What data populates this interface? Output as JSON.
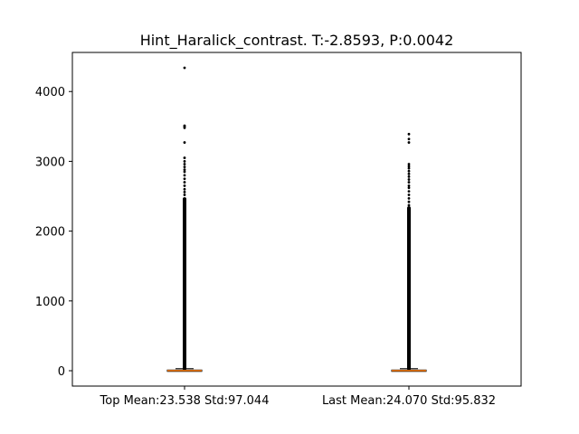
{
  "chart_data": {
    "type": "box",
    "title": "Hint_Haralick_contrast. T:-2.8593, P:0.0042",
    "categories": [
      "Top Mean:23.538 Std:97.044",
      "Last Mean:24.070 Std:95.832"
    ],
    "xlabel": "",
    "ylabel": "",
    "ylim": [
      -220,
      4560
    ],
    "yticks": [
      0,
      1000,
      2000,
      3000,
      4000
    ],
    "grid": false,
    "series": [
      {
        "box": {
          "q1": 0,
          "median": 2,
          "q3": 10,
          "whisker_low": 0,
          "whisker_high": 30
        },
        "outlier_dense_range": [
          30,
          2460
        ],
        "outliers_sparse": [
          2520,
          2560,
          2600,
          2650,
          2700,
          2750,
          2800,
          2850,
          2880,
          2920,
          2960,
          3000,
          3050,
          3270,
          3480,
          3500,
          3510,
          4340
        ]
      },
      {
        "box": {
          "q1": 0,
          "median": 2,
          "q3": 10,
          "whisker_low": 0,
          "whisker_high": 30
        },
        "outlier_dense_range": [
          30,
          2330
        ],
        "outliers_sparse": [
          2370,
          2420,
          2470,
          2520,
          2570,
          2620,
          2650,
          2700,
          2740,
          2780,
          2820,
          2860,
          2900,
          2930,
          2960,
          3270,
          3320,
          3390
        ]
      }
    ],
    "colors": {
      "median": "#ff7f0e",
      "box": "#000000",
      "outlier": "#000000"
    }
  }
}
